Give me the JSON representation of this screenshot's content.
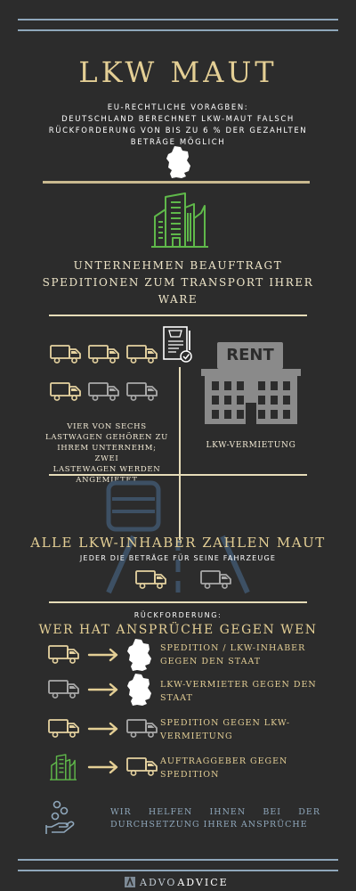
{
  "title": "LKW MAUT",
  "intro": {
    "line1": "EU-RECHTLICHE VORAGBEN:",
    "line2": "DEUTSCHLAND BERECHNET LKW-MAUT FALSCH",
    "line3": "RÜCKFORDERUNG VON BIS ZU 6 % DER GEZAHLTEN",
    "line4": "BETRÄGE MÖGLICH"
  },
  "company": {
    "line1": "UNTERNEHMEN BEAUFTRAGT",
    "line2": "SPEDITIONEN ZUM TRANSPORT IHRER",
    "line3": "WARE"
  },
  "fleet": {
    "line1": "VIER VON SECHS",
    "line2": "LASTWAGEN GEHÖREN ZU",
    "line3": "IHREM UNTERNEHM; ZWEI",
    "line4": "LASTEWAGEN WERDEN",
    "line5": "ANGEMIETET"
  },
  "rent": {
    "sign": "RENT",
    "label": "LKW-VERMIETUNG"
  },
  "toll": {
    "heading": "ALLE LKW-INHABER ZAHLEN MAUT",
    "sub": "JEDER DIE BETRÄGE FÜR SEINE FAHRZEUGE"
  },
  "claims": {
    "label": "RÜCKFORDERUNG:",
    "heading": "WER HAT ANSPRÜCHE GEGEN WEN",
    "items": [
      {
        "line1": "SPEDITION / LKW-INHABER",
        "line2": "GEGEN DEN STAAT"
      },
      {
        "line1": "LKW-VERMIETER GEGEN DEN",
        "line2": "STAAT"
      },
      {
        "line1": "SPEDITION GEGEN LKW-",
        "line2": "VERMIETUNG"
      },
      {
        "line1": "AUFTRAGGEBER GEGEN",
        "line2": "SPEDITION"
      }
    ]
  },
  "help": {
    "line1": "WIR HELFEN IHNEN BEI DER",
    "line2": "DURCHSETZUNG IHRER ANSPRÜCHE"
  },
  "footer": {
    "brand_a": "ADVO",
    "brand_b": "ADVICE"
  },
  "colors": {
    "gold": "#e4cf95",
    "truck_gold": "#e6d3a0",
    "truck_grey": "#aaaaaa",
    "green": "#5fb84a",
    "blue": "#8fa7bb",
    "background": "#2c2c2c"
  }
}
